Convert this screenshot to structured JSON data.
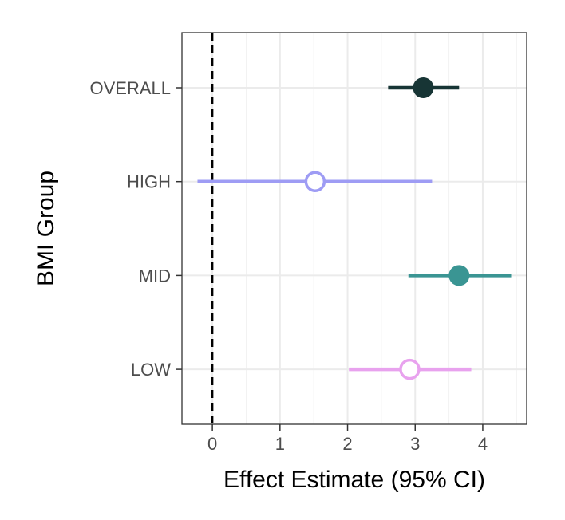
{
  "chart_data": {
    "type": "forest",
    "xlabel": "Effect Estimate (95% CI)",
    "ylabel": "BMI Group",
    "xlim": [
      -0.45,
      4.65
    ],
    "xticks": [
      0,
      1,
      2,
      3,
      4
    ],
    "reference_line": 0,
    "grid": true,
    "categories": [
      "OVERALL",
      "HIGH",
      "MID",
      "LOW"
    ],
    "points": [
      {
        "group": "OVERALL",
        "estimate": 3.12,
        "lower": 2.6,
        "upper": 3.65,
        "color": "#173535",
        "marker": "filled"
      },
      {
        "group": "HIGH",
        "estimate": 1.52,
        "lower": -0.22,
        "upper": 3.25,
        "color": "#9e9cf4",
        "marker": "open"
      },
      {
        "group": "MID",
        "estimate": 3.65,
        "lower": 2.9,
        "upper": 4.42,
        "color": "#3a9593",
        "marker": "filled"
      },
      {
        "group": "LOW",
        "estimate": 2.92,
        "lower": 2.02,
        "upper": 3.83,
        "color": "#e8a2ee",
        "marker": "open"
      }
    ]
  }
}
